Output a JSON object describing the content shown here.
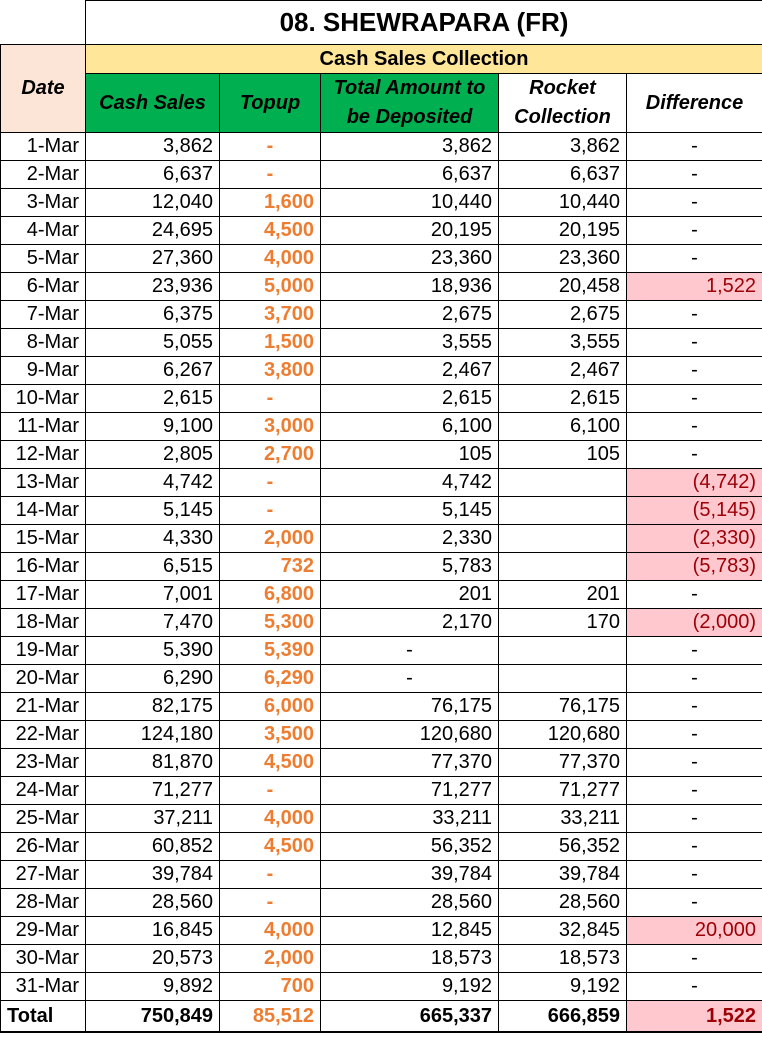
{
  "title": "08. SHEWRAPARA (FR)",
  "subtitle": "Cash Sales Collection",
  "headers": {
    "date": "Date",
    "cash_sales": "Cash Sales",
    "topup": "Topup",
    "total_amount": "Total Amount to be Deposited",
    "rocket": "Rocket Collection",
    "difference": "Difference"
  },
  "rows": [
    {
      "date": "1-Mar",
      "cash": "3,862",
      "topup": "-",
      "total": "3,862",
      "rocket": "3,862",
      "diff": "-"
    },
    {
      "date": "2-Mar",
      "cash": "6,637",
      "topup": "-",
      "total": "6,637",
      "rocket": "6,637",
      "diff": "-"
    },
    {
      "date": "3-Mar",
      "cash": "12,040",
      "topup": "1,600",
      "total": "10,440",
      "rocket": "10,440",
      "diff": "-"
    },
    {
      "date": "4-Mar",
      "cash": "24,695",
      "topup": "4,500",
      "total": "20,195",
      "rocket": "20,195",
      "diff": "-"
    },
    {
      "date": "5-Mar",
      "cash": "27,360",
      "topup": "4,000",
      "total": "23,360",
      "rocket": "23,360",
      "diff": "-"
    },
    {
      "date": "6-Mar",
      "cash": "23,936",
      "topup": "5,000",
      "total": "18,936",
      "rocket": "20,458",
      "diff": "1,522"
    },
    {
      "date": "7-Mar",
      "cash": "6,375",
      "topup": "3,700",
      "total": "2,675",
      "rocket": "2,675",
      "diff": "-"
    },
    {
      "date": "8-Mar",
      "cash": "5,055",
      "topup": "1,500",
      "total": "3,555",
      "rocket": "3,555",
      "diff": "-"
    },
    {
      "date": "9-Mar",
      "cash": "6,267",
      "topup": "3,800",
      "total": "2,467",
      "rocket": "2,467",
      "diff": "-"
    },
    {
      "date": "10-Mar",
      "cash": "2,615",
      "topup": "-",
      "total": "2,615",
      "rocket": "2,615",
      "diff": "-"
    },
    {
      "date": "11-Mar",
      "cash": "9,100",
      "topup": "3,000",
      "total": "6,100",
      "rocket": "6,100",
      "diff": "-"
    },
    {
      "date": "12-Mar",
      "cash": "2,805",
      "topup": "2,700",
      "total": "105",
      "rocket": "105",
      "diff": "-"
    },
    {
      "date": "13-Mar",
      "cash": "4,742",
      "topup": "-",
      "total": "4,742",
      "rocket": "",
      "diff": "(4,742)"
    },
    {
      "date": "14-Mar",
      "cash": "5,145",
      "topup": "-",
      "total": "5,145",
      "rocket": "",
      "diff": "(5,145)"
    },
    {
      "date": "15-Mar",
      "cash": "4,330",
      "topup": "2,000",
      "total": "2,330",
      "rocket": "",
      "diff": "(2,330)"
    },
    {
      "date": "16-Mar",
      "cash": "6,515",
      "topup": "732",
      "total": "5,783",
      "rocket": "",
      "diff": "(5,783)"
    },
    {
      "date": "17-Mar",
      "cash": "7,001",
      "topup": "6,800",
      "total": "201",
      "rocket": "201",
      "diff": "-"
    },
    {
      "date": "18-Mar",
      "cash": "7,470",
      "topup": "5,300",
      "total": "2,170",
      "rocket": "170",
      "diff": "(2,000)"
    },
    {
      "date": "19-Mar",
      "cash": "5,390",
      "topup": "5,390",
      "total": "-",
      "rocket": "",
      "diff": "-"
    },
    {
      "date": "20-Mar",
      "cash": "6,290",
      "topup": "6,290",
      "total": "-",
      "rocket": "",
      "diff": "-"
    },
    {
      "date": "21-Mar",
      "cash": "82,175",
      "topup": "6,000",
      "total": "76,175",
      "rocket": "76,175",
      "diff": "-"
    },
    {
      "date": "22-Mar",
      "cash": "124,180",
      "topup": "3,500",
      "total": "120,680",
      "rocket": "120,680",
      "diff": "-"
    },
    {
      "date": "23-Mar",
      "cash": "81,870",
      "topup": "4,500",
      "total": "77,370",
      "rocket": "77,370",
      "diff": "-"
    },
    {
      "date": "24-Mar",
      "cash": "71,277",
      "topup": "-",
      "total": "71,277",
      "rocket": "71,277",
      "diff": "-"
    },
    {
      "date": "25-Mar",
      "cash": "37,211",
      "topup": "4,000",
      "total": "33,211",
      "rocket": "33,211",
      "diff": "-"
    },
    {
      "date": "26-Mar",
      "cash": "60,852",
      "topup": "4,500",
      "total": "56,352",
      "rocket": "56,352",
      "diff": "-"
    },
    {
      "date": "27-Mar",
      "cash": "39,784",
      "topup": "-",
      "total": "39,784",
      "rocket": "39,784",
      "diff": "-"
    },
    {
      "date": "28-Mar",
      "cash": "28,560",
      "topup": "-",
      "total": "28,560",
      "rocket": "28,560",
      "diff": "-"
    },
    {
      "date": "29-Mar",
      "cash": "16,845",
      "topup": "4,000",
      "total": "12,845",
      "rocket": "32,845",
      "diff": "20,000"
    },
    {
      "date": "30-Mar",
      "cash": "20,573",
      "topup": "2,000",
      "total": "18,573",
      "rocket": "18,573",
      "diff": "-"
    },
    {
      "date": "31-Mar",
      "cash": "9,892",
      "topup": "700",
      "total": "9,192",
      "rocket": "9,192",
      "diff": "-"
    }
  ],
  "totals": {
    "label": "Total",
    "cash": "750,849",
    "topup": "85,512",
    "total": "665,337",
    "rocket": "666,859",
    "diff": "1,522"
  },
  "colors": {
    "header_green": "#00b050",
    "subtitle_yellow": "#ffe699",
    "date_header_peach": "#fce4d6",
    "topup_orange": "#ed7d31",
    "highlight_pink": "#ffc7ce",
    "highlight_text": "#9c0006"
  }
}
